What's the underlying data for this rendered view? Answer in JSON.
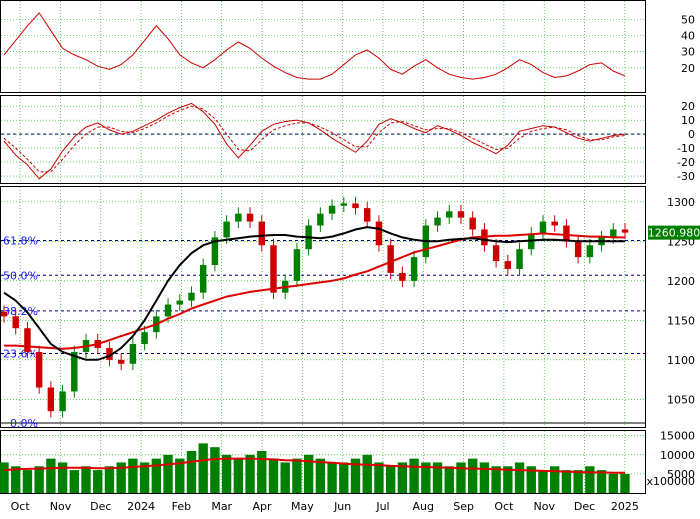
{
  "colors": {
    "frame": "#000000",
    "grid": "#00b400",
    "indicator": "#cc0000",
    "price_up": "#008000",
    "price_down": "#cc0000",
    "ma_short": "#000000",
    "ma_long": "#dd0000",
    "fib_line": "#000080",
    "fib_label": "#1a1aff",
    "price_tag_bg": "#008000",
    "price_tag_text": "#ffffff",
    "volume": "#008000"
  },
  "chart_data": [
    {
      "type": "line",
      "panel": "indicator-top",
      "ylim": [
        5,
        62
      ],
      "yticks": [
        20,
        30,
        40,
        50
      ],
      "series": [
        {
          "values": [
            28,
            37,
            46,
            54,
            43,
            32,
            28,
            25,
            21,
            19,
            22,
            28,
            37,
            46,
            38,
            28,
            23,
            20,
            25,
            31,
            36,
            32,
            26,
            21,
            17,
            14,
            13,
            13,
            16,
            22,
            28,
            31,
            26,
            19,
            16,
            21,
            25,
            20,
            16,
            14,
            13,
            14,
            16,
            20,
            25,
            22,
            17,
            14,
            15,
            18,
            22,
            23,
            18,
            15
          ]
        }
      ]
    },
    {
      "type": "line",
      "panel": "macd",
      "ylim": [
        -35,
        28
      ],
      "yticks": [
        -30,
        -20,
        -10,
        0,
        10,
        20
      ],
      "reference_line": 0,
      "series": [
        {
          "style": "solid",
          "values": [
            -5,
            -15,
            -22,
            -32,
            -25,
            -12,
            -2,
            5,
            8,
            3,
            0,
            2,
            6,
            10,
            15,
            19,
            22,
            16,
            7,
            -7,
            -17,
            -8,
            2,
            7,
            9,
            10,
            8,
            3,
            -3,
            -8,
            -13,
            -5,
            7,
            11,
            8,
            4,
            1,
            6,
            3,
            -1,
            -6,
            -10,
            -14,
            -8,
            2,
            4,
            6,
            5,
            1,
            -3,
            -5,
            -3,
            -1,
            0
          ]
        },
        {
          "style": "dashed",
          "values": [
            -3,
            -10,
            -18,
            -27,
            -27,
            -18,
            -8,
            0,
            5,
            5,
            2,
            1,
            4,
            8,
            13,
            17,
            20,
            18,
            11,
            0,
            -11,
            -12,
            -4,
            3,
            6,
            8,
            8,
            5,
            1,
            -4,
            -9,
            -9,
            1,
            8,
            9,
            6,
            3,
            4,
            4,
            1,
            -3,
            -7,
            -11,
            -10,
            -3,
            2,
            4,
            5,
            3,
            -1,
            -4,
            -4,
            -2,
            -1
          ]
        }
      ]
    },
    {
      "type": "candlestick",
      "panel": "price",
      "x_axis": [
        "Oct",
        "Nov",
        "Dec",
        "2024",
        "Feb",
        "Mar",
        "Apr",
        "May",
        "Jun",
        "Jul",
        "Aug",
        "Sep",
        "Oct",
        "Nov",
        "Dec",
        "2025"
      ],
      "ylim": [
        1015,
        1320
      ],
      "yticks": [
        1050,
        1100,
        1150,
        1200,
        1250,
        1300
      ],
      "close_series": [
        1155,
        1140,
        1110,
        1065,
        1035,
        1060,
        1110,
        1125,
        1115,
        1100,
        1095,
        1120,
        1135,
        1155,
        1170,
        1175,
        1185,
        1220,
        1255,
        1275,
        1285,
        1275,
        1245,
        1185,
        1200,
        1240,
        1270,
        1285,
        1295,
        1298,
        1292,
        1275,
        1245,
        1210,
        1200,
        1230,
        1270,
        1280,
        1288,
        1280,
        1265,
        1245,
        1225,
        1215,
        1240,
        1260,
        1275,
        1270,
        1250,
        1230,
        1245,
        1255,
        1265,
        1261
      ],
      "ma_short": [
        1185,
        1175,
        1160,
        1140,
        1120,
        1110,
        1105,
        1100,
        1100,
        1105,
        1115,
        1130,
        1150,
        1175,
        1200,
        1220,
        1235,
        1245,
        1250,
        1252,
        1254,
        1256,
        1257,
        1258,
        1258,
        1256,
        1255,
        1254,
        1256,
        1260,
        1265,
        1268,
        1266,
        1260,
        1255,
        1252,
        1250,
        1250,
        1252,
        1253,
        1254,
        1252,
        1250,
        1249,
        1250,
        1251,
        1252,
        1252,
        1251,
        1250,
        1250,
        1250,
        1250,
        1250
      ],
      "ma_long": [
        1118,
        1118,
        1117,
        1116,
        1115,
        1114,
        1115,
        1117,
        1120,
        1125,
        1130,
        1135,
        1140,
        1145,
        1152,
        1158,
        1165,
        1170,
        1175,
        1180,
        1183,
        1186,
        1188,
        1190,
        1192,
        1194,
        1196,
        1198,
        1200,
        1203,
        1208,
        1212,
        1218,
        1224,
        1230,
        1236,
        1240,
        1244,
        1248,
        1252,
        1255,
        1256,
        1257,
        1257,
        1258,
        1259,
        1260,
        1259,
        1258,
        1257,
        1256,
        1256,
        1255,
        1255
      ],
      "fibonacci": [
        {
          "label": "61.8%",
          "value": 1251
        },
        {
          "label": "50.0%",
          "value": 1207
        },
        {
          "label": "38.2%",
          "value": 1162
        },
        {
          "label": "23.6%",
          "value": 1108
        },
        {
          "label": "0.0%",
          "value": 1020
        }
      ],
      "last_price_label": "1260.980",
      "last_price": 1260.98
    },
    {
      "type": "bar",
      "panel": "volume",
      "ylim": [
        0,
        16500
      ],
      "yticks": [
        5000,
        10000,
        15000
      ],
      "ylabel": "x100000",
      "x_axis": [
        "Oct",
        "Nov",
        "Dec",
        "2024",
        "Feb",
        "Mar",
        "Apr",
        "May",
        "Jun",
        "Jul",
        "Aug",
        "Sep",
        "Oct",
        "Nov",
        "Dec",
        "2025"
      ],
      "values": [
        8,
        7,
        6,
        7,
        9,
        8,
        6,
        7,
        6,
        7,
        8,
        9,
        8,
        9,
        10,
        9,
        11,
        13,
        12,
        10,
        9,
        10,
        11,
        9,
        8,
        9,
        10,
        9,
        8,
        8,
        9,
        10,
        8,
        7,
        8,
        9,
        8,
        8,
        7,
        8,
        9,
        8,
        7,
        7,
        8,
        7,
        6,
        7,
        6,
        6,
        7,
        6,
        5,
        5
      ],
      "average": [
        6,
        6.2,
        6.3,
        6.4,
        6.5,
        6.6,
        6.6,
        6.6,
        6.5,
        6.5,
        6.6,
        6.8,
        7,
        7.2,
        7.5,
        7.8,
        8.2,
        8.6,
        8.9,
        9,
        9,
        9,
        8.9,
        8.8,
        8.6,
        8.5,
        8.3,
        8.1,
        7.9,
        7.7,
        7.5,
        7.4,
        7.3,
        7.1,
        7,
        6.9,
        6.8,
        6.7,
        6.6,
        6.5,
        6.4,
        6.3,
        6.2,
        6.1,
        6,
        5.9,
        5.8,
        5.7,
        5.6,
        5.5,
        5.4,
        5.4,
        5.3,
        5.3
      ]
    }
  ]
}
